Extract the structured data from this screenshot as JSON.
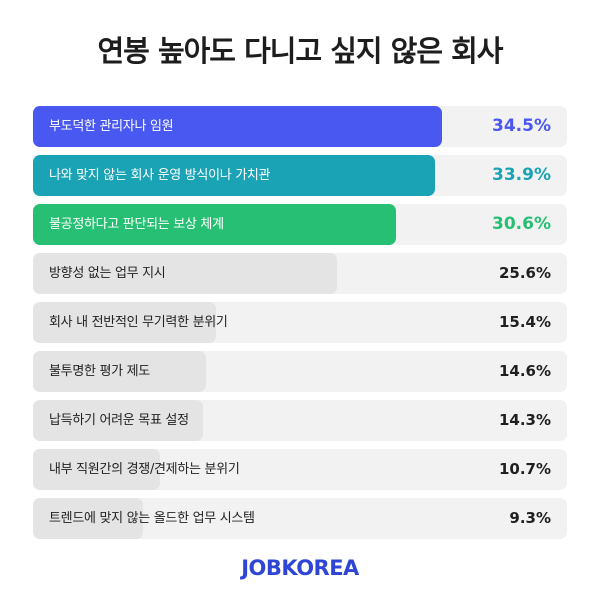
{
  "title": "연봉 높아도 다니고 싶지 않은 회사",
  "brand": "JOBKOREA",
  "colors": {
    "highlight_1": "#4a58f2",
    "highlight_2": "#1aa3b4",
    "highlight_3": "#27bf73",
    "neutral_bar": "#e4e4e4",
    "row_background": "#f2f2f2",
    "brand": "#2f45d6"
  },
  "chart_data": {
    "type": "bar",
    "orientation": "horizontal",
    "unit": "%",
    "categories": [
      "부도덕한 관리자나 임원",
      "나와 맞지 않는 회사 운영 방식이나 가치관",
      "불공정하다고 판단되는 보상 체계",
      "방향성 없는 업무 지시",
      "회사 내 전반적인 무기력한 분위기",
      "불투명한 평가 제도",
      "납득하기 어려운 목표 설정",
      "내부 직원간의 경쟁/견제하는 분위기",
      "트렌드에 맞지 않는 올드한 업무 시스템"
    ],
    "values": [
      34.5,
      33.9,
      30.6,
      25.6,
      15.4,
      14.6,
      14.3,
      10.7,
      9.3
    ],
    "value_labels": [
      "34.5%",
      "33.9%",
      "30.6%",
      "25.6%",
      "15.4%",
      "14.6%",
      "14.3%",
      "10.7%",
      "9.3%"
    ],
    "highlighted_count": 3,
    "xlim": [
      0,
      45
    ]
  }
}
